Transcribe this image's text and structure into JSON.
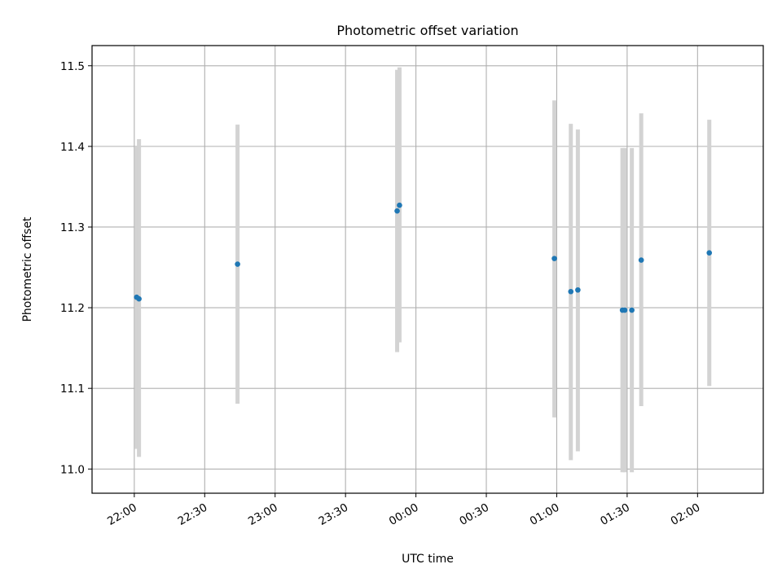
{
  "chart_data": {
    "type": "scatter",
    "title": "Photometric offset variation",
    "xlabel": "UTC time",
    "ylabel": "Photometric offset",
    "grid": true,
    "ylim": [
      10.97,
      11.525
    ],
    "xlim": [
      "21:42",
      "02:28"
    ],
    "x_ticks": [
      "22:00",
      "22:30",
      "23:00",
      "23:30",
      "00:00",
      "00:30",
      "01:00",
      "01:30",
      "02:00"
    ],
    "y_ticks": [
      "11.0",
      "11.1",
      "11.2",
      "11.3",
      "11.4",
      "11.5"
    ],
    "y_tick_values": [
      11.0,
      11.1,
      11.2,
      11.3,
      11.4,
      11.5
    ],
    "marker_color": "#1f77b4",
    "errorbar_color": "#d3d3d3",
    "points": [
      {
        "time": "22:01",
        "y": 11.213,
        "ylow": 11.025,
        "yhigh": 11.4
      },
      {
        "time": "22:02",
        "y": 11.211,
        "ylow": 11.015,
        "yhigh": 11.409
      },
      {
        "time": "22:44",
        "y": 11.254,
        "ylow": 11.081,
        "yhigh": 11.427
      },
      {
        "time": "23:52",
        "y": 11.32,
        "ylow": 11.145,
        "yhigh": 11.495
      },
      {
        "time": "23:53",
        "y": 11.327,
        "ylow": 11.157,
        "yhigh": 11.498
      },
      {
        "time": "00:59",
        "y": 11.261,
        "ylow": 11.064,
        "yhigh": 11.457
      },
      {
        "time": "01:06",
        "y": 11.22,
        "ylow": 11.011,
        "yhigh": 11.428
      },
      {
        "time": "01:09",
        "y": 11.222,
        "ylow": 11.022,
        "yhigh": 11.421
      },
      {
        "time": "01:28",
        "y": 11.197,
        "ylow": 10.996,
        "yhigh": 11.398
      },
      {
        "time": "01:29",
        "y": 11.197,
        "ylow": 10.996,
        "yhigh": 11.398
      },
      {
        "time": "01:32",
        "y": 11.197,
        "ylow": 10.996,
        "yhigh": 11.398
      },
      {
        "time": "01:36",
        "y": 11.259,
        "ylow": 11.078,
        "yhigh": 11.441
      },
      {
        "time": "02:05",
        "y": 11.268,
        "ylow": 11.103,
        "yhigh": 11.433
      }
    ]
  }
}
